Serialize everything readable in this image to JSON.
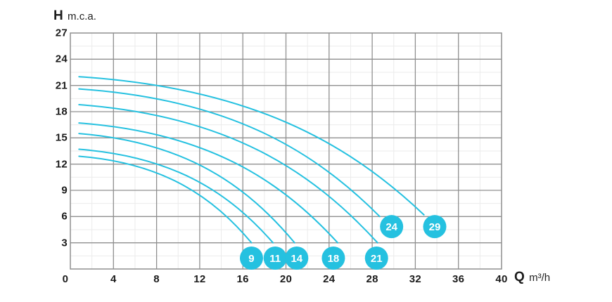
{
  "chart_data": {
    "type": "line",
    "description": "Pump performance curves: head H (m.c.a.) versus flow Q (m3/h) for 7 pump models",
    "y_axis": {
      "symbol": "H",
      "unit": "m.c.a.",
      "min": 0,
      "max": 27,
      "major_step": 3,
      "minor_step": 1.5,
      "ticks": [
        27,
        24,
        21,
        18,
        15,
        12,
        9,
        6,
        3
      ]
    },
    "x_axis": {
      "symbol": "Q",
      "unit": "m³/h",
      "min": 0,
      "max": 40,
      "major_step": 4,
      "minor_step": 2,
      "ticks": [
        0,
        4,
        8,
        12,
        16,
        20,
        24,
        28,
        32,
        36,
        40
      ]
    },
    "grid": {
      "major_on": true,
      "minor_on": true
    },
    "legend_position": "badges-on-plot",
    "series": [
      {
        "name": "9",
        "points": [
          [
            0.8,
            12.9
          ],
          [
            16.8,
            3.0
          ]
        ],
        "badge": {
          "label": "9",
          "x": 16.8,
          "y": 1.25
        }
      },
      {
        "name": "11",
        "points": [
          [
            0.8,
            13.7
          ],
          [
            18.8,
            3.0
          ]
        ],
        "badge": {
          "label": "11",
          "x": 19.0,
          "y": 1.25
        }
      },
      {
        "name": "14",
        "points": [
          [
            0.8,
            15.5
          ],
          [
            20.8,
            3.0
          ]
        ],
        "badge": {
          "label": "14",
          "x": 21.0,
          "y": 1.25
        }
      },
      {
        "name": "18",
        "points": [
          [
            0.8,
            16.7
          ],
          [
            24.8,
            3.0
          ]
        ],
        "badge": {
          "label": "18",
          "x": 24.4,
          "y": 1.25
        }
      },
      {
        "name": "21",
        "points": [
          [
            0.8,
            18.8
          ],
          [
            28.5,
            3.0
          ]
        ],
        "badge": {
          "label": "21",
          "x": 28.4,
          "y": 1.25
        }
      },
      {
        "name": "24",
        "points": [
          [
            0.8,
            20.6
          ],
          [
            28.7,
            6.0
          ]
        ],
        "badge": {
          "label": "24",
          "x": 29.8,
          "y": 4.85
        }
      },
      {
        "name": "29",
        "points": [
          [
            0.8,
            22.0
          ],
          [
            32.8,
            6.2
          ]
        ],
        "badge": {
          "label": "29",
          "x": 33.8,
          "y": 4.85
        }
      }
    ],
    "colors": {
      "curve": "#25c1e0",
      "badge_fill": "#25c1e0",
      "badge_text": "#ffffff",
      "grid_major": "#8f8f8f",
      "grid_minor": "#ebebeb",
      "text": "#1b1b1b",
      "background": "#ffffff"
    }
  }
}
